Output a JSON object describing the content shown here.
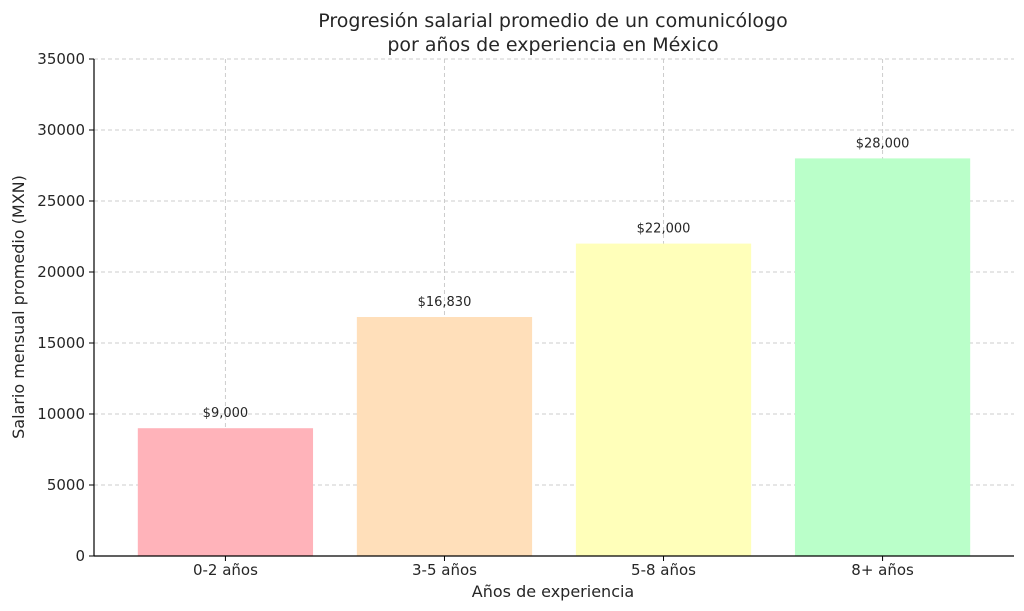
{
  "chart_data": {
    "type": "bar",
    "title": [
      "Progresión salarial promedio de un comunicólogo",
      "por años de experiencia en México"
    ],
    "xlabel": "Años de experiencia",
    "ylabel": "Salario mensual promedio (MXN)",
    "categories": [
      "0-2 años",
      "3-5 años",
      "5-8 años",
      "8+ años"
    ],
    "values": [
      9000,
      16830,
      22000,
      28000
    ],
    "value_labels": [
      "$9,000",
      "$16,830",
      "$22,000",
      "$28,000"
    ],
    "colors": [
      "#ffb3ba",
      "#ffdfba",
      "#ffffba",
      "#baffc9"
    ],
    "ylim": [
      0,
      35000
    ],
    "yticks": [
      0,
      5000,
      10000,
      15000,
      20000,
      25000,
      30000,
      35000
    ],
    "ytick_labels": [
      "0",
      "5000",
      "10000",
      "15000",
      "20000",
      "25000",
      "30000",
      "35000"
    ],
    "grid": true
  }
}
